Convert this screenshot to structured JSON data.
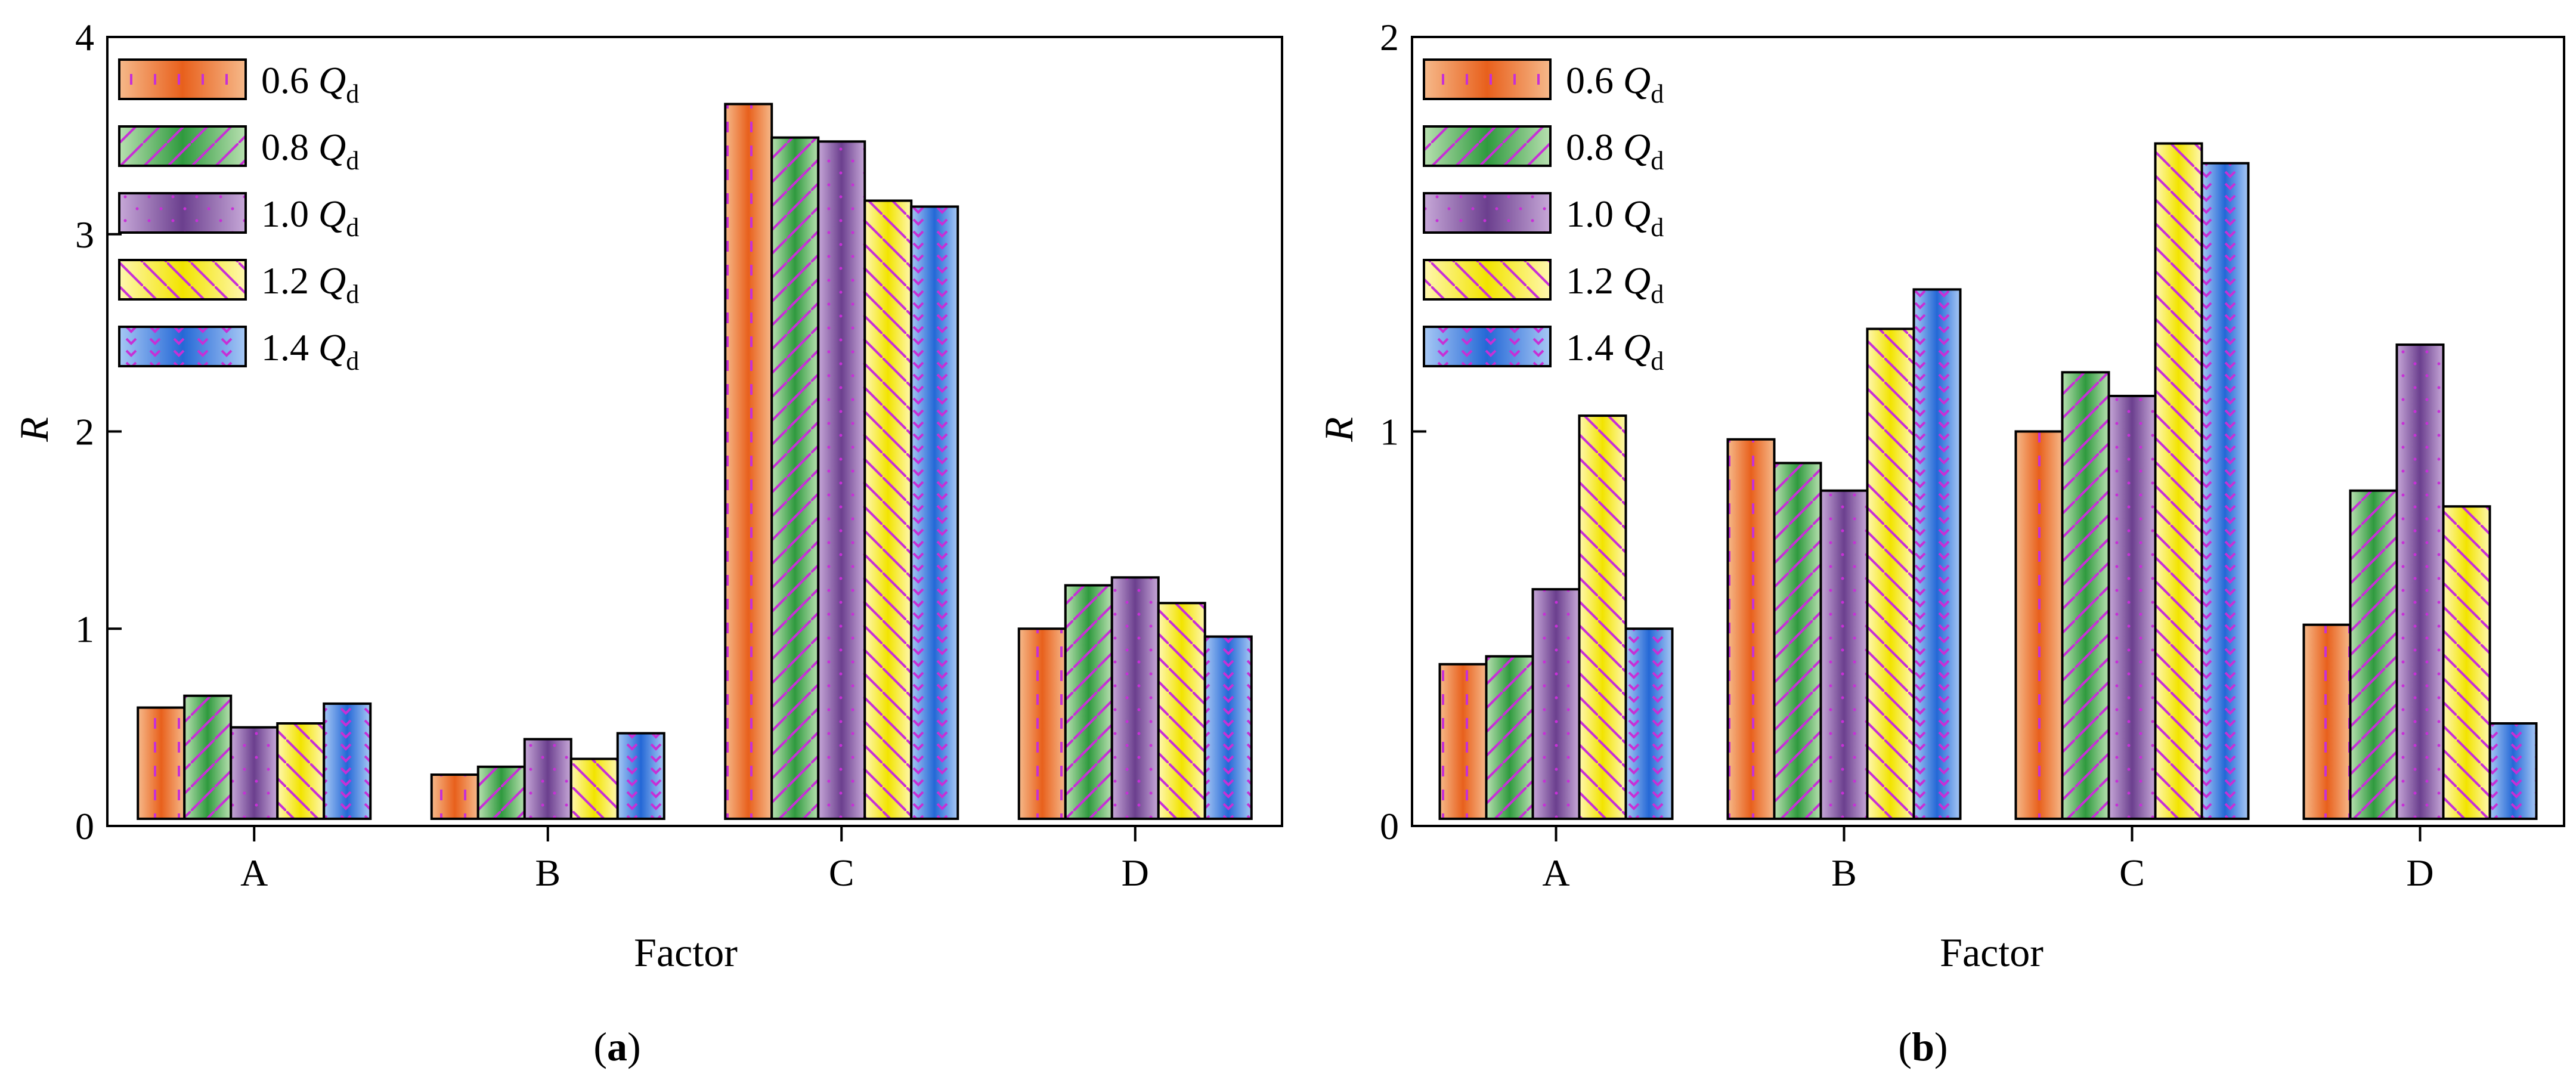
{
  "chart_data": [
    {
      "type": "bar",
      "panel_caption": "a",
      "xlabel": "Factor",
      "ylabel": "R",
      "ylim": [
        0,
        4
      ],
      "yticks": [
        "0",
        "1",
        "2",
        "3",
        "4"
      ],
      "categories": [
        "A",
        "B",
        "C",
        "D"
      ],
      "legend_position": "top-left",
      "series": [
        {
          "name": "0.6 Q",
          "subscript": "d",
          "values": [
            0.6,
            0.26,
            3.66,
            1.0
          ]
        },
        {
          "name": "0.8 Q",
          "subscript": "d",
          "values": [
            0.66,
            0.3,
            3.49,
            1.22
          ]
        },
        {
          "name": "1.0 Q",
          "subscript": "d",
          "values": [
            0.5,
            0.44,
            3.47,
            1.26
          ]
        },
        {
          "name": "1.2 Q",
          "subscript": "d",
          "values": [
            0.52,
            0.34,
            3.17,
            1.13
          ]
        },
        {
          "name": "1.4 Q",
          "subscript": "d",
          "values": [
            0.62,
            0.47,
            3.14,
            0.96
          ]
        }
      ]
    },
    {
      "type": "bar",
      "panel_caption": "b",
      "xlabel": "Factor",
      "ylabel": "R",
      "ylim": [
        0,
        2
      ],
      "yticks": [
        "0",
        "1",
        "2"
      ],
      "categories": [
        "A",
        "B",
        "C",
        "D"
      ],
      "legend_position": "top-left",
      "series": [
        {
          "name": "0.6 Q",
          "subscript": "d",
          "values": [
            0.41,
            0.98,
            1.0,
            0.51
          ]
        },
        {
          "name": "0.8 Q",
          "subscript": "d",
          "values": [
            0.43,
            0.92,
            1.15,
            0.85
          ]
        },
        {
          "name": "1.0 Q",
          "subscript": "d",
          "values": [
            0.6,
            0.85,
            1.09,
            1.22
          ]
        },
        {
          "name": "1.2 Q",
          "subscript": "d",
          "values": [
            1.04,
            1.26,
            1.73,
            0.81
          ]
        },
        {
          "name": "1.4 Q",
          "subscript": "d",
          "values": [
            0.5,
            1.36,
            1.68,
            0.26
          ]
        }
      ]
    }
  ],
  "series_colors": [
    {
      "light": "#f6b98a",
      "dark": "#e8601c",
      "pattern": "#c72fd6"
    },
    {
      "light": "#b8e0b0",
      "dark": "#2f9a3e",
      "pattern": "#c72fd6"
    },
    {
      "light": "#c7a8d8",
      "dark": "#6b3f8e",
      "pattern": "#c72fd6"
    },
    {
      "light": "#fff7b0",
      "dark": "#f2e400",
      "pattern": "#c72fd6"
    },
    {
      "light": "#a7c8f5",
      "dark": "#2468d6",
      "pattern": "#c72fd6"
    }
  ]
}
